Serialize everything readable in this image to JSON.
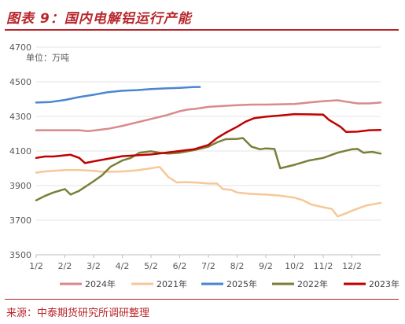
{
  "header": {
    "title": "图表 9：国内电解铝运行产能"
  },
  "footer": {
    "source": "来源：中泰期货研究所调研整理"
  },
  "chart_data": {
    "type": "line",
    "unit_label": "单位：万吨",
    "ylim": [
      3500,
      4700
    ],
    "yticks": [
      3500,
      3700,
      3900,
      4100,
      4300,
      4500,
      4700
    ],
    "x_tick_labels": [
      "1/2",
      "2/2",
      "3/2",
      "4/2",
      "5/2",
      "6/2",
      "7/2",
      "8/2",
      "9/2",
      "10/2",
      "11/2",
      "12/2"
    ],
    "x_axis_note": "x values are month positions: 1 = 1/2, 2 = 2/2, ... 12 = 12/2",
    "legend": {
      "position": "bottom"
    },
    "series": [
      {
        "name": "2024年",
        "color": "#d98a8a",
        "points": [
          [
            1.0,
            4220
          ],
          [
            1.5,
            4220
          ],
          [
            2.0,
            4220
          ],
          [
            2.5,
            4220
          ],
          [
            2.8,
            4215
          ],
          [
            3.0,
            4218
          ],
          [
            3.5,
            4228
          ],
          [
            4.0,
            4245
          ],
          [
            4.5,
            4265
          ],
          [
            5.0,
            4285
          ],
          [
            5.5,
            4305
          ],
          [
            6.0,
            4330
          ],
          [
            6.3,
            4340
          ],
          [
            6.6,
            4345
          ],
          [
            7.0,
            4355
          ],
          [
            7.5,
            4360
          ],
          [
            8.0,
            4365
          ],
          [
            8.5,
            4368
          ],
          [
            9.0,
            4368
          ],
          [
            9.5,
            4370
          ],
          [
            10.0,
            4372
          ],
          [
            10.5,
            4380
          ],
          [
            11.0,
            4388
          ],
          [
            11.5,
            4393
          ],
          [
            11.8,
            4385
          ],
          [
            12.2,
            4375
          ],
          [
            12.6,
            4375
          ],
          [
            13.0,
            4380
          ]
        ]
      },
      {
        "name": "2021年",
        "color": "#f5c898",
        "points": [
          [
            1.0,
            3975
          ],
          [
            1.3,
            3982
          ],
          [
            1.6,
            3985
          ],
          [
            2.0,
            3990
          ],
          [
            2.5,
            3990
          ],
          [
            3.0,
            3985
          ],
          [
            3.3,
            3980
          ],
          [
            3.7,
            3980
          ],
          [
            4.0,
            3982
          ],
          [
            4.5,
            3988
          ],
          [
            5.0,
            4000
          ],
          [
            5.3,
            4008
          ],
          [
            5.6,
            3950
          ],
          [
            5.9,
            3918
          ],
          [
            6.2,
            3920
          ],
          [
            6.5,
            3918
          ],
          [
            6.8,
            3915
          ],
          [
            7.0,
            3912
          ],
          [
            7.3,
            3912
          ],
          [
            7.5,
            3880
          ],
          [
            7.8,
            3875
          ],
          [
            8.0,
            3860
          ],
          [
            8.5,
            3852
          ],
          [
            9.0,
            3848
          ],
          [
            9.5,
            3842
          ],
          [
            10.0,
            3830
          ],
          [
            10.3,
            3815
          ],
          [
            10.6,
            3790
          ],
          [
            11.0,
            3775
          ],
          [
            11.3,
            3765
          ],
          [
            11.5,
            3722
          ],
          [
            11.8,
            3740
          ],
          [
            12.0,
            3755
          ],
          [
            12.5,
            3785
          ],
          [
            13.0,
            3800
          ]
        ]
      },
      {
        "name": "2025年",
        "color": "#4a86d0",
        "points": [
          [
            1.0,
            4380
          ],
          [
            1.5,
            4383
          ],
          [
            2.0,
            4395
          ],
          [
            2.5,
            4412
          ],
          [
            3.0,
            4425
          ],
          [
            3.5,
            4440
          ],
          [
            4.0,
            4448
          ],
          [
            4.5,
            4452
          ],
          [
            5.0,
            4458
          ],
          [
            5.5,
            4462
          ],
          [
            6.0,
            4465
          ],
          [
            6.5,
            4470
          ],
          [
            6.7,
            4470
          ]
        ]
      },
      {
        "name": "2022年",
        "color": "#7b7f38",
        "points": [
          [
            1.0,
            3815
          ],
          [
            1.3,
            3840
          ],
          [
            1.6,
            3860
          ],
          [
            2.0,
            3880
          ],
          [
            2.2,
            3848
          ],
          [
            2.5,
            3870
          ],
          [
            3.0,
            3925
          ],
          [
            3.3,
            3960
          ],
          [
            3.6,
            4010
          ],
          [
            4.0,
            4045
          ],
          [
            4.3,
            4060
          ],
          [
            4.6,
            4090
          ],
          [
            5.0,
            4098
          ],
          [
            5.3,
            4090
          ],
          [
            5.6,
            4085
          ],
          [
            6.0,
            4090
          ],
          [
            6.5,
            4105
          ],
          [
            7.0,
            4125
          ],
          [
            7.3,
            4150
          ],
          [
            7.6,
            4168
          ],
          [
            8.0,
            4170
          ],
          [
            8.2,
            4175
          ],
          [
            8.5,
            4125
          ],
          [
            8.8,
            4110
          ],
          [
            9.0,
            4115
          ],
          [
            9.3,
            4112
          ],
          [
            9.5,
            4000
          ],
          [
            10.0,
            4020
          ],
          [
            10.5,
            4045
          ],
          [
            11.0,
            4060
          ],
          [
            11.5,
            4090
          ],
          [
            12.0,
            4110
          ],
          [
            12.2,
            4112
          ],
          [
            12.4,
            4090
          ],
          [
            12.7,
            4095
          ],
          [
            13.0,
            4085
          ]
        ]
      },
      {
        "name": "2023年",
        "color": "#c00000",
        "points": [
          [
            1.0,
            4060
          ],
          [
            1.3,
            4068
          ],
          [
            1.6,
            4068
          ],
          [
            2.0,
            4075
          ],
          [
            2.2,
            4078
          ],
          [
            2.5,
            4060
          ],
          [
            2.7,
            4030
          ],
          [
            3.0,
            4040
          ],
          [
            3.5,
            4055
          ],
          [
            4.0,
            4070
          ],
          [
            4.5,
            4075
          ],
          [
            5.0,
            4080
          ],
          [
            5.5,
            4090
          ],
          [
            6.0,
            4100
          ],
          [
            6.5,
            4110
          ],
          [
            7.0,
            4135
          ],
          [
            7.3,
            4175
          ],
          [
            7.6,
            4205
          ],
          [
            8.0,
            4240
          ],
          [
            8.3,
            4270
          ],
          [
            8.6,
            4290
          ],
          [
            9.0,
            4298
          ],
          [
            9.5,
            4305
          ],
          [
            10.0,
            4313
          ],
          [
            10.5,
            4312
          ],
          [
            11.0,
            4310
          ],
          [
            11.2,
            4280
          ],
          [
            11.6,
            4240
          ],
          [
            11.8,
            4210
          ],
          [
            12.2,
            4212
          ],
          [
            12.6,
            4220
          ],
          [
            13.0,
            4222
          ]
        ]
      }
    ]
  }
}
